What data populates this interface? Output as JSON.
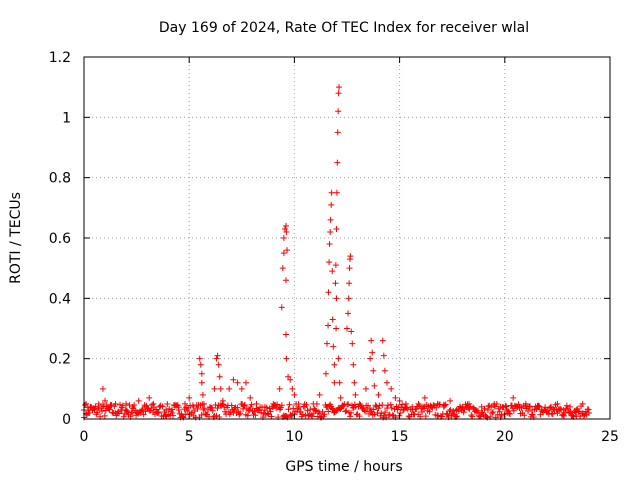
{
  "chart_data": {
    "type": "scatter",
    "title": "Day 169 of 2024, Rate Of TEC Index for receiver wlal",
    "xlabel": "GPS time / hours",
    "ylabel": "ROTI / TECUs",
    "xlim": [
      0,
      25
    ],
    "ylim": [
      0,
      1.2
    ],
    "xticks": [
      0,
      5,
      10,
      15,
      20,
      25
    ],
    "xtick_labels": [
      "0",
      "5",
      "10",
      "15",
      "20",
      "25"
    ],
    "yticks": [
      0,
      0.2,
      0.4,
      0.6,
      0.8,
      1.0,
      1.2
    ],
    "ytick_labels": [
      "0",
      "0.2",
      "0.4",
      "0.6",
      "0.8",
      "1",
      "1.2"
    ],
    "grid": true,
    "marker": "plus",
    "color": "#ff0000",
    "series": [
      {
        "points": [
          [
            0.0,
            0.03
          ],
          [
            0.1,
            0.05
          ],
          [
            0.2,
            0.02
          ],
          [
            0.3,
            0.04
          ],
          [
            0.5,
            0.03
          ],
          [
            0.7,
            0.05
          ],
          [
            0.9,
            0.1
          ],
          [
            1.0,
            0.06
          ],
          [
            1.2,
            0.04
          ],
          [
            1.5,
            0.05
          ],
          [
            1.8,
            0.03
          ],
          [
            2.0,
            0.05
          ],
          [
            2.3,
            0.04
          ],
          [
            2.6,
            0.06
          ],
          [
            2.9,
            0.04
          ],
          [
            3.1,
            0.07
          ],
          [
            3.3,
            0.05
          ],
          [
            3.6,
            0.04
          ],
          [
            3.9,
            0.03
          ],
          [
            4.2,
            0.02
          ],
          [
            4.5,
            0.03
          ],
          [
            4.8,
            0.05
          ],
          [
            5.0,
            0.07
          ],
          [
            5.2,
            0.04
          ],
          [
            5.5,
            0.2
          ],
          [
            5.55,
            0.18
          ],
          [
            5.6,
            0.15
          ],
          [
            5.6,
            0.12
          ],
          [
            5.65,
            0.08
          ],
          [
            5.7,
            0.05
          ],
          [
            6.2,
            0.1
          ],
          [
            6.3,
            0.2
          ],
          [
            6.35,
            0.21
          ],
          [
            6.4,
            0.18
          ],
          [
            6.45,
            0.14
          ],
          [
            6.5,
            0.1
          ],
          [
            6.6,
            0.06
          ],
          [
            6.9,
            0.1
          ],
          [
            7.1,
            0.13
          ],
          [
            7.3,
            0.12
          ],
          [
            7.5,
            0.1
          ],
          [
            7.7,
            0.12
          ],
          [
            7.9,
            0.07
          ],
          [
            8.2,
            0.05
          ],
          [
            8.6,
            0.04
          ],
          [
            9.0,
            0.05
          ],
          [
            9.3,
            0.1
          ],
          [
            9.4,
            0.37
          ],
          [
            9.45,
            0.5
          ],
          [
            9.5,
            0.55
          ],
          [
            9.5,
            0.6
          ],
          [
            9.55,
            0.63
          ],
          [
            9.6,
            0.64
          ],
          [
            9.62,
            0.62
          ],
          [
            9.65,
            0.56
          ],
          [
            9.6,
            0.46
          ],
          [
            9.6,
            0.28
          ],
          [
            9.62,
            0.2
          ],
          [
            9.7,
            0.14
          ],
          [
            9.8,
            0.13
          ],
          [
            9.9,
            0.1
          ],
          [
            10.0,
            0.08
          ],
          [
            10.2,
            0.05
          ],
          [
            10.5,
            0.04
          ],
          [
            10.9,
            0.05
          ],
          [
            11.2,
            0.08
          ],
          [
            11.5,
            0.15
          ],
          [
            11.55,
            0.25
          ],
          [
            11.6,
            0.31
          ],
          [
            11.62,
            0.42
          ],
          [
            11.65,
            0.52
          ],
          [
            11.67,
            0.58
          ],
          [
            11.7,
            0.62
          ],
          [
            11.72,
            0.66
          ],
          [
            11.75,
            0.71
          ],
          [
            11.77,
            0.75
          ],
          [
            11.8,
            0.49
          ],
          [
            11.82,
            0.33
          ],
          [
            11.85,
            0.24
          ],
          [
            11.9,
            0.18
          ],
          [
            11.9,
            0.12
          ],
          [
            11.95,
            0.45
          ],
          [
            11.97,
            0.51
          ],
          [
            12.0,
            0.63
          ],
          [
            12.02,
            0.75
          ],
          [
            12.04,
            0.85
          ],
          [
            12.06,
            0.95
          ],
          [
            12.08,
            1.02
          ],
          [
            12.1,
            1.08
          ],
          [
            12.12,
            1.1
          ],
          [
            12.0,
            0.4
          ],
          [
            11.98,
            0.3
          ],
          [
            12.1,
            0.2
          ],
          [
            12.15,
            0.12
          ],
          [
            12.2,
            0.07
          ],
          [
            12.5,
            0.3
          ],
          [
            12.55,
            0.35
          ],
          [
            12.58,
            0.4
          ],
          [
            12.6,
            0.45
          ],
          [
            12.62,
            0.5
          ],
          [
            12.64,
            0.53
          ],
          [
            12.66,
            0.54
          ],
          [
            12.7,
            0.29
          ],
          [
            12.75,
            0.25
          ],
          [
            12.8,
            0.18
          ],
          [
            12.85,
            0.12
          ],
          [
            12.9,
            0.08
          ],
          [
            13.1,
            0.05
          ],
          [
            13.4,
            0.1
          ],
          [
            13.6,
            0.2
          ],
          [
            13.65,
            0.26
          ],
          [
            13.7,
            0.22
          ],
          [
            13.75,
            0.16
          ],
          [
            13.8,
            0.11
          ],
          [
            14.0,
            0.08
          ],
          [
            14.2,
            0.26
          ],
          [
            14.25,
            0.21
          ],
          [
            14.3,
            0.16
          ],
          [
            14.4,
            0.12
          ],
          [
            14.6,
            0.1
          ],
          [
            14.8,
            0.07
          ],
          [
            15.0,
            0.06
          ],
          [
            15.3,
            0.05
          ],
          [
            15.6,
            0.04
          ],
          [
            15.9,
            0.05
          ],
          [
            16.2,
            0.07
          ],
          [
            16.5,
            0.04
          ],
          [
            16.8,
            0.05
          ],
          [
            17.1,
            0.04
          ],
          [
            17.4,
            0.06
          ],
          [
            17.7,
            0.03
          ],
          [
            18.0,
            0.04
          ],
          [
            18.3,
            0.05
          ],
          [
            18.6,
            0.03
          ],
          [
            18.9,
            0.04
          ],
          [
            19.2,
            0.03
          ],
          [
            19.5,
            0.05
          ],
          [
            19.8,
            0.04
          ],
          [
            20.1,
            0.03
          ],
          [
            20.4,
            0.07
          ],
          [
            20.7,
            0.04
          ],
          [
            21.0,
            0.05
          ],
          [
            21.3,
            0.03
          ],
          [
            21.6,
            0.04
          ],
          [
            21.9,
            0.03
          ],
          [
            22.2,
            0.04
          ],
          [
            22.5,
            0.05
          ],
          [
            22.8,
            0.03
          ],
          [
            23.1,
            0.04
          ],
          [
            23.4,
            0.03
          ],
          [
            23.7,
            0.05
          ],
          [
            24.0,
            0.02
          ]
        ]
      }
    ]
  }
}
